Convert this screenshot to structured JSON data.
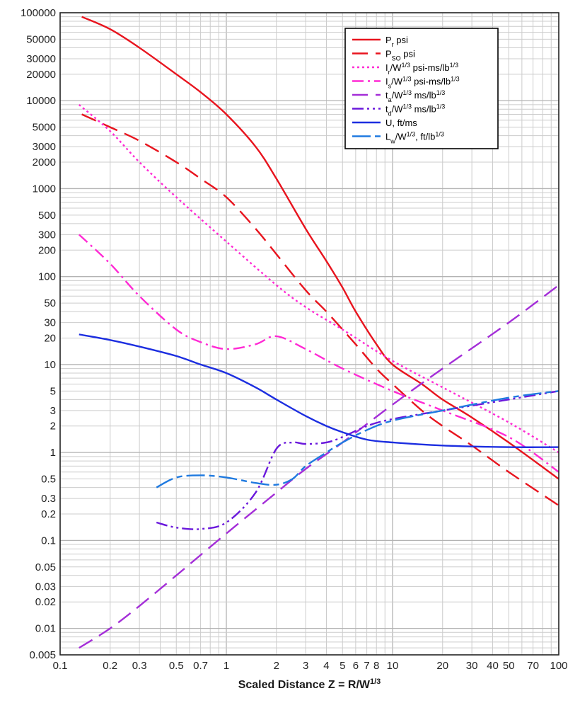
{
  "chart_data": {
    "type": "line",
    "title": "",
    "xlabel_main": "Scaled Distance Z = R/W",
    "xlabel_sup": "1/3",
    "ylabel": "",
    "x_scale": "log",
    "y_scale": "log",
    "xlim": [
      0.1,
      100
    ],
    "ylim": [
      0.005,
      100000
    ],
    "grid": true,
    "legend_position": "top-right",
    "x_ticks": [
      {
        "v": 0.1,
        "label": "0.1"
      },
      {
        "v": 0.2,
        "label": "0.2"
      },
      {
        "v": 0.3,
        "label": "0.3"
      },
      {
        "v": 0.5,
        "label": "0.5"
      },
      {
        "v": 0.7,
        "label": "0.7"
      },
      {
        "v": 1,
        "label": "1"
      },
      {
        "v": 2,
        "label": "2"
      },
      {
        "v": 3,
        "label": "3"
      },
      {
        "v": 4,
        "label": "4"
      },
      {
        "v": 5,
        "label": "5"
      },
      {
        "v": 6,
        "label": "6"
      },
      {
        "v": 7,
        "label": "7"
      },
      {
        "v": 8,
        "label": "8"
      },
      {
        "v": 10,
        "label": "10"
      },
      {
        "v": 20,
        "label": "20"
      },
      {
        "v": 30,
        "label": "30"
      },
      {
        "v": 40,
        "label": "40"
      },
      {
        "v": 50,
        "label": "50"
      },
      {
        "v": 70,
        "label": "70"
      },
      {
        "v": 100,
        "label": "100"
      }
    ],
    "y_ticks": [
      {
        "v": 100000,
        "label": "100000"
      },
      {
        "v": 50000,
        "label": "50000"
      },
      {
        "v": 30000,
        "label": "30000"
      },
      {
        "v": 20000,
        "label": "20000"
      },
      {
        "v": 10000,
        "label": "10000"
      },
      {
        "v": 5000,
        "label": "5000"
      },
      {
        "v": 3000,
        "label": "3000"
      },
      {
        "v": 2000,
        "label": "2000"
      },
      {
        "v": 1000,
        "label": "1000"
      },
      {
        "v": 500,
        "label": "500"
      },
      {
        "v": 300,
        "label": "300"
      },
      {
        "v": 200,
        "label": "200"
      },
      {
        "v": 100,
        "label": "100"
      },
      {
        "v": 50,
        "label": "50"
      },
      {
        "v": 30,
        "label": "30"
      },
      {
        "v": 20,
        "label": "20"
      },
      {
        "v": 10,
        "label": "10"
      },
      {
        "v": 5,
        "label": "5"
      },
      {
        "v": 3,
        "label": "3"
      },
      {
        "v": 2,
        "label": "2"
      },
      {
        "v": 1,
        "label": "1"
      },
      {
        "v": 0.5,
        "label": "0.5"
      },
      {
        "v": 0.3,
        "label": "0.3"
      },
      {
        "v": 0.2,
        "label": "0.2"
      },
      {
        "v": 0.1,
        "label": "0.1"
      },
      {
        "v": 0.05,
        "label": "0.05"
      },
      {
        "v": 0.03,
        "label": "0.03"
      },
      {
        "v": 0.02,
        "label": "0.02"
      },
      {
        "v": 0.01,
        "label": "0.01"
      },
      {
        "v": 0.005,
        "label": "0.005"
      }
    ],
    "series": [
      {
        "name": "Pr",
        "label_main": "P",
        "label_sub": "r",
        "label_rest": " psi",
        "label_sup": "",
        "color": "#e8141e",
        "dash": "solid",
        "x": [
          0.135,
          0.2,
          0.3,
          0.5,
          0.7,
          1,
          1.5,
          2,
          3,
          4,
          5,
          6,
          8,
          10,
          15,
          20,
          30,
          50,
          100
        ],
        "y": [
          90000,
          65000,
          40000,
          20000,
          12500,
          7000,
          3000,
          1300,
          350,
          150,
          75,
          40,
          17,
          10,
          6,
          4,
          2.5,
          1.3,
          0.5
        ]
      },
      {
        "name": "Pso",
        "label_main": "P",
        "label_sub": "SO",
        "label_rest": " psi",
        "label_sup": "",
        "color": "#e8141e",
        "dash": "long",
        "x": [
          0.135,
          0.2,
          0.3,
          0.5,
          0.7,
          1,
          1.5,
          2,
          3,
          4,
          5,
          6,
          8,
          10,
          15,
          20,
          30,
          50,
          100
        ],
        "y": [
          7000,
          5000,
          3500,
          2000,
          1300,
          800,
          350,
          180,
          70,
          40,
          25,
          17,
          9,
          6,
          3,
          2,
          1.2,
          0.6,
          0.25
        ]
      },
      {
        "name": "Ir/W1/3",
        "label_main": "I",
        "label_sub": "r",
        "label_rest": "/W",
        "label_sup": "1/3",
        "label_tail": " psi-ms/lb",
        "label_tail_sup": "1/3",
        "color": "#ff2ad4",
        "dash": "dot",
        "x": [
          0.13,
          0.2,
          0.3,
          0.5,
          1,
          2,
          3,
          5,
          10,
          20,
          50,
          100
        ],
        "y": [
          9000,
          4500,
          2000,
          800,
          250,
          80,
          45,
          25,
          11,
          5.5,
          2.2,
          1.0
        ]
      },
      {
        "name": "Is/W1/3",
        "label_main": "I",
        "label_sub": "s",
        "label_rest": "/W",
        "label_sup": "1/3",
        "label_tail": " psi-ms/lb",
        "label_tail_sup": "1/3",
        "color": "#ff2ad4",
        "dash": "dashdot",
        "x": [
          0.13,
          0.2,
          0.3,
          0.5,
          0.7,
          1,
          1.5,
          2,
          3,
          5,
          10,
          20,
          50,
          100
        ],
        "y": [
          300,
          140,
          60,
          25,
          18,
          15,
          17,
          21,
          15,
          9,
          5,
          3,
          1.5,
          0.6
        ]
      },
      {
        "name": "ta/W1/3",
        "label_main": "t",
        "label_sub": "a",
        "label_rest": "/W",
        "label_sup": "1/3",
        "label_tail": " ms/lb",
        "label_tail_sup": "1/3",
        "color": "#a42ed8",
        "dash": "long",
        "x": [
          0.13,
          0.2,
          0.3,
          0.5,
          1,
          2,
          3,
          5,
          10,
          20,
          50,
          100
        ],
        "y": [
          0.006,
          0.01,
          0.018,
          0.04,
          0.12,
          0.35,
          0.65,
          1.3,
          3.5,
          9,
          30,
          80
        ]
      },
      {
        "name": "td/W1/3",
        "label_main": "t",
        "label_sub": "d",
        "label_rest": "/W",
        "label_sup": "1/3",
        "label_tail": " ms/lb",
        "label_tail_sup": "1/3",
        "color": "#6a18dc",
        "dash": "dashdotdot",
        "x": [
          0.38,
          0.5,
          0.7,
          1,
          1.5,
          2,
          2.5,
          3,
          4,
          5,
          7,
          10,
          20,
          50,
          100
        ],
        "y": [
          0.16,
          0.14,
          0.135,
          0.16,
          0.35,
          1.1,
          1.3,
          1.25,
          1.3,
          1.5,
          2.0,
          2.4,
          3.0,
          4.0,
          5.0
        ]
      },
      {
        "name": "U, ft/ms",
        "label_main": "U, ft/ms",
        "label_sub": "",
        "label_rest": "",
        "label_sup": "",
        "color": "#1c2ee0",
        "dash": "solid",
        "x": [
          0.13,
          0.2,
          0.3,
          0.5,
          0.7,
          1,
          1.5,
          2,
          3,
          4,
          5,
          7,
          10,
          20,
          50,
          100
        ],
        "y": [
          22,
          19,
          16,
          12.5,
          10,
          8,
          5.5,
          4,
          2.6,
          2.0,
          1.7,
          1.4,
          1.3,
          1.2,
          1.15,
          1.15
        ]
      },
      {
        "name": "Lw/W1/3, ft/lb1/3",
        "label_main": "L",
        "label_sub": "w",
        "label_rest": "/W",
        "label_sup": "1/3",
        "label_tail": ", ft/lb",
        "label_tail_sup": "1/3",
        "color": "#1f7ae0",
        "dash": "longshort",
        "x": [
          0.38,
          0.5,
          0.7,
          1,
          1.5,
          2,
          2.5,
          3,
          4,
          5,
          7,
          10,
          20,
          50,
          100
        ],
        "y": [
          0.4,
          0.52,
          0.55,
          0.52,
          0.45,
          0.43,
          0.5,
          0.7,
          1.0,
          1.3,
          1.8,
          2.3,
          3.0,
          4.2,
          5.0
        ]
      }
    ]
  }
}
